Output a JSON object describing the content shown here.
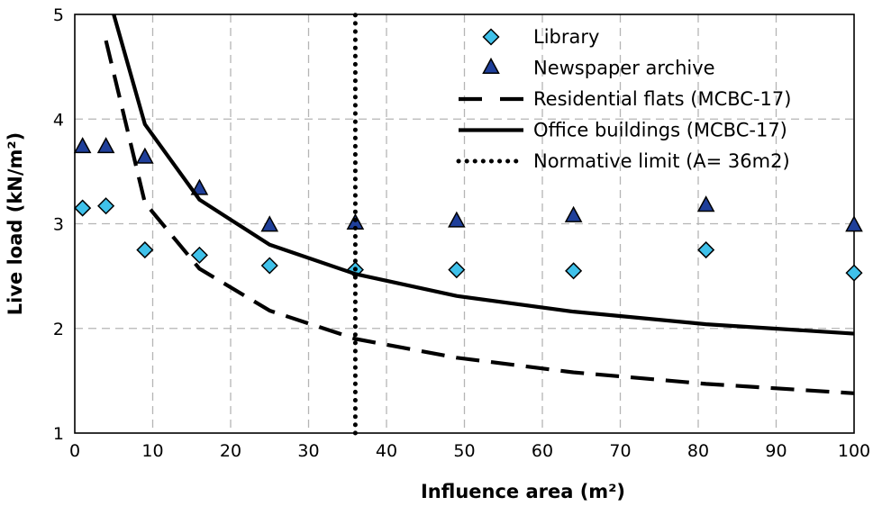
{
  "chart_data": {
    "type": "scatter",
    "xlabel": "Influence area (m²)",
    "ylabel": "Live load (kN/m²)",
    "xlim": [
      0,
      100
    ],
    "ylim": [
      1,
      5
    ],
    "xticks": [
      0,
      10,
      20,
      30,
      40,
      50,
      60,
      70,
      80,
      90,
      100
    ],
    "yticks": [
      1,
      2,
      3,
      4,
      5
    ],
    "grid": true,
    "legend_position": "top-right",
    "series": [
      {
        "name": "Library",
        "kind": "marker",
        "marker": "diamond",
        "color": "#3fc1ea",
        "x": [
          1,
          4,
          9,
          16,
          25,
          36,
          49,
          64,
          81,
          100
        ],
        "y": [
          3.15,
          3.17,
          2.75,
          2.7,
          2.6,
          2.56,
          2.56,
          2.55,
          2.75,
          2.53
        ]
      },
      {
        "name": "Newspaper archive",
        "kind": "marker",
        "marker": "triangle",
        "color": "#1f3f9a",
        "x": [
          1,
          4,
          9,
          16,
          25,
          36,
          49,
          64,
          81,
          100
        ],
        "y": [
          3.73,
          3.73,
          3.63,
          3.33,
          2.98,
          3.0,
          3.02,
          3.07,
          3.17,
          2.98
        ]
      },
      {
        "name": "Residential flats (MCBC-17)",
        "kind": "line",
        "dash": "dashed",
        "color": "#000000",
        "x": [
          4,
          9,
          16,
          25,
          36,
          49,
          64,
          81,
          100
        ],
        "y": [
          4.75,
          3.2,
          2.57,
          2.17,
          1.9,
          1.72,
          1.58,
          1.47,
          1.38
        ]
      },
      {
        "name": "Office buildings (MCBC-17)",
        "kind": "line",
        "dash": "solid",
        "color": "#000000",
        "x": [
          5,
          9,
          16,
          25,
          36,
          49,
          64,
          81,
          100
        ],
        "y": [
          5.0,
          3.95,
          3.23,
          2.8,
          2.52,
          2.31,
          2.16,
          2.04,
          1.95
        ]
      },
      {
        "name": "Normative limit (A= 36m2)",
        "kind": "vline",
        "dash": "dotted",
        "color": "#000000",
        "x": [
          36,
          36
        ],
        "y": [
          1,
          5
        ]
      }
    ]
  }
}
